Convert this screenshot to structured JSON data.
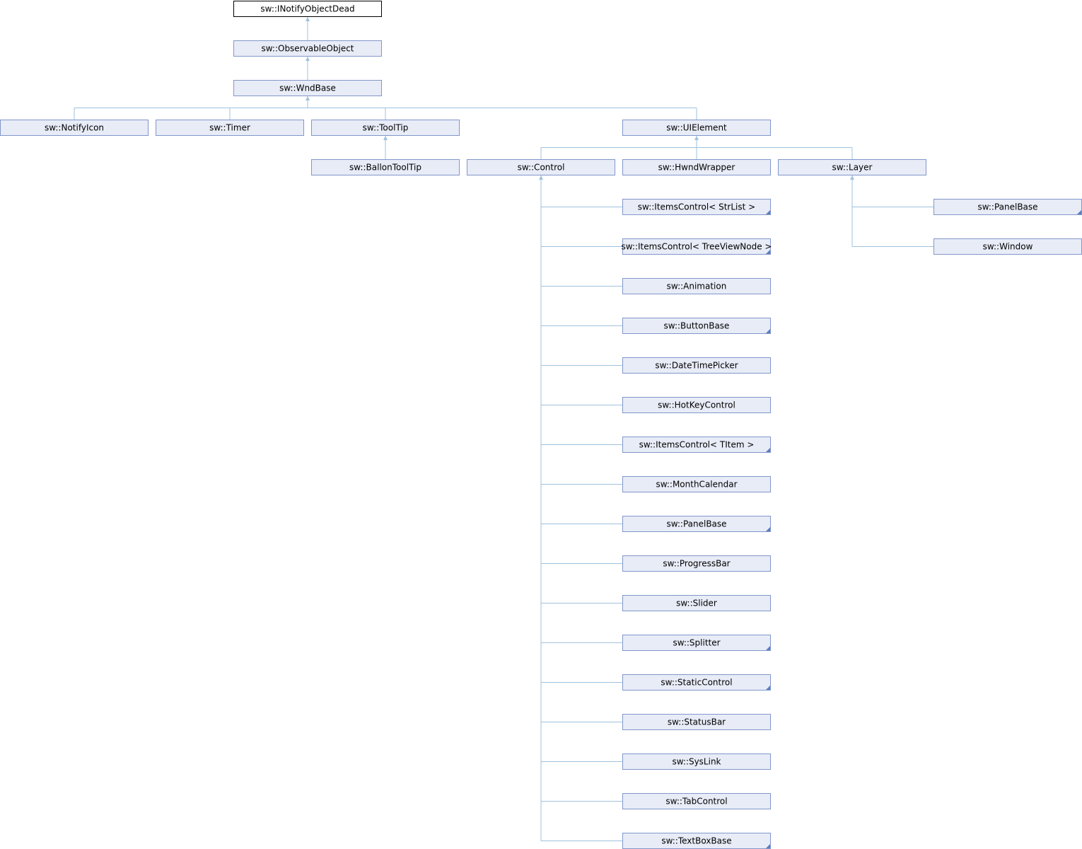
{
  "nodes": [
    {
      "label": "sw::INotifyObjectDead"
    },
    {
      "label": "sw::ObservableObject"
    },
    {
      "label": "sw::WndBase"
    },
    {
      "label": "sw::NotifyIcon"
    },
    {
      "label": "sw::Timer"
    },
    {
      "label": "sw::ToolTip"
    },
    {
      "label": "sw::UIElement"
    },
    {
      "label": "sw::BallonToolTip"
    },
    {
      "label": "sw::Control"
    },
    {
      "label": "sw::HwndWrapper"
    },
    {
      "label": "sw::Layer"
    },
    {
      "label": "sw::PanelBase",
      "truncated": true
    },
    {
      "label": "sw::Window"
    },
    {
      "label": "sw::ItemsControl< StrList >",
      "truncated": true
    },
    {
      "label": "sw::ItemsControl< TreeViewNode >",
      "truncated": true
    },
    {
      "label": "sw::Animation"
    },
    {
      "label": "sw::ButtonBase",
      "truncated": true
    },
    {
      "label": "sw::DateTimePicker"
    },
    {
      "label": "sw::HotKeyControl"
    },
    {
      "label": "sw::ItemsControl< TItem >",
      "truncated": true
    },
    {
      "label": "sw::MonthCalendar"
    },
    {
      "label": "sw::PanelBase",
      "truncated": true
    },
    {
      "label": "sw::ProgressBar"
    },
    {
      "label": "sw::Slider"
    },
    {
      "label": "sw::Splitter",
      "truncated": true
    },
    {
      "label": "sw::StaticControl",
      "truncated": true
    },
    {
      "label": "sw::StatusBar"
    },
    {
      "label": "sw::SysLink"
    },
    {
      "label": "sw::TabControl"
    },
    {
      "label": "sw::TextBoxBase",
      "truncated": true
    }
  ]
}
